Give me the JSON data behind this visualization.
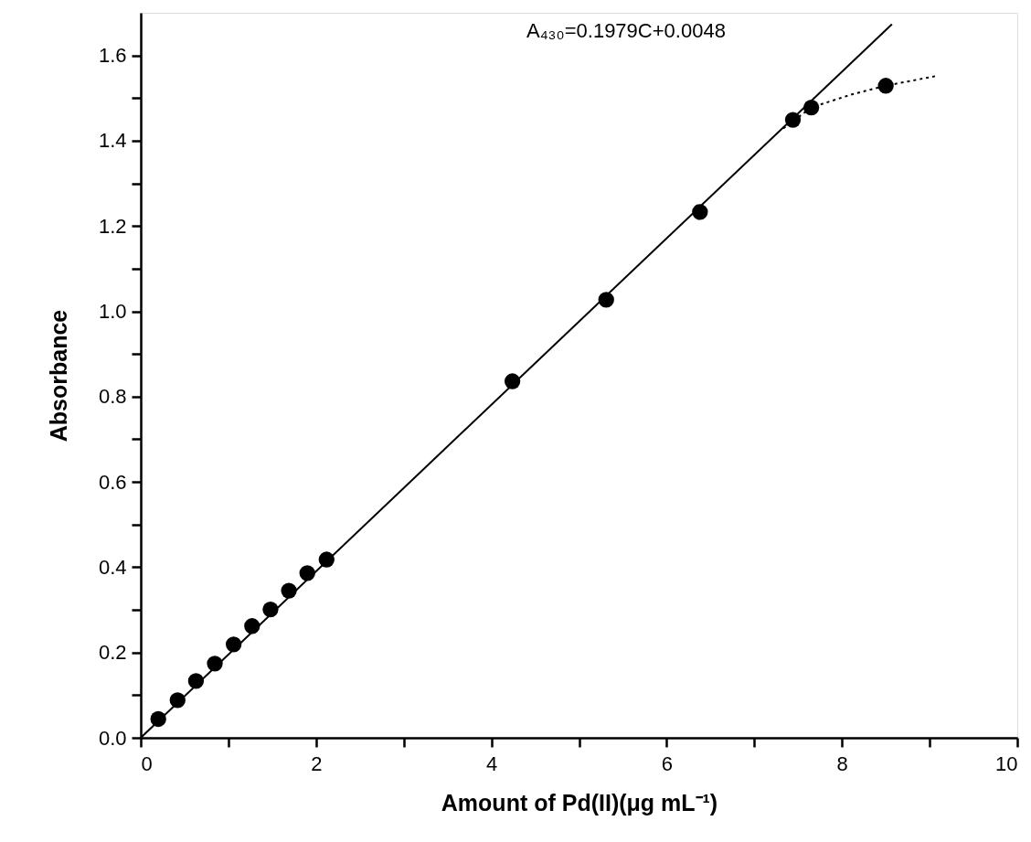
{
  "chart_data": {
    "type": "scatter",
    "xlabel": "Amount of Pd(II)(μg mL⁻¹)",
    "ylabel": "Absorbance",
    "annotations": [
      "A₄₃₀=0.1979C+0.0048"
    ],
    "x": [
      0.2,
      0.42,
      0.63,
      0.845,
      1.06,
      1.27,
      1.48,
      1.69,
      1.9,
      2.12,
      4.24,
      5.31,
      6.38,
      7.44,
      7.65,
      8.5
    ],
    "series": [
      {
        "type": "scatter",
        "color": "#000000",
        "marker": "circle",
        "values": [
          0.044,
          0.088,
          0.133,
          0.174,
          0.219,
          0.262,
          0.301,
          0.345,
          0.386,
          0.418,
          0.836,
          1.027,
          1.233,
          1.449,
          1.478,
          1.529
        ]
      },
      {
        "type": "line",
        "color": "#000000",
        "line_style": "solid",
        "marker": "none",
        "x": [
          0,
          8.57
        ],
        "values": [
          0.0,
          1.673
        ]
      },
      {
        "type": "line",
        "color": "#000000",
        "line_style": "dotted",
        "marker": "none",
        "x": [
          7.33,
          7.65,
          8.1,
          8.5,
          9.08
        ],
        "values": [
          1.429,
          1.478,
          1.508,
          1.529,
          1.552
        ]
      }
    ],
    "xlim": [
      0,
      10
    ],
    "ylim": [
      0,
      1.7
    ],
    "xticks": [
      0,
      {
        "value": 1,
        "label": null
      },
      2,
      {
        "value": 3,
        "label": null
      },
      4,
      {
        "value": 5,
        "label": null
      },
      6,
      {
        "value": 7,
        "label": null
      },
      8,
      {
        "value": 9,
        "label": null
      },
      10
    ],
    "yticks": [
      {
        "value": 0,
        "label": "0.0"
      },
      {
        "value": 0.1,
        "label": null
      },
      0.2,
      {
        "value": 0.3,
        "label": null
      },
      0.4,
      {
        "value": 0.5,
        "label": null
      },
      0.6,
      {
        "value": 0.7,
        "label": null
      },
      0.8,
      {
        "value": 0.9,
        "label": null
      },
      {
        "value": 1,
        "label": "1.0"
      },
      {
        "value": 1.1,
        "label": null
      },
      1.2,
      {
        "value": 1.3,
        "label": null
      },
      1.4,
      {
        "value": 1.5,
        "label": null
      },
      1.6
    ],
    "grid": false
  }
}
